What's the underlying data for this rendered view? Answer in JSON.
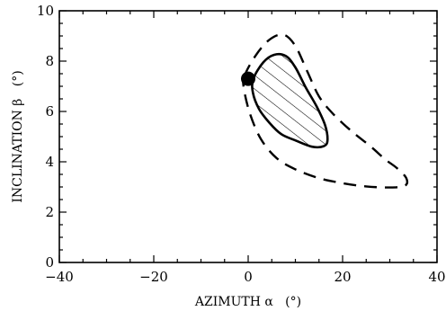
{
  "chart_data": {
    "type": "contour",
    "xlabel": "AZIMUTH α   (°)",
    "ylabel": "INCLINATION β   (°)",
    "xlim": [
      -40,
      40
    ],
    "ylim": [
      0,
      10
    ],
    "x_ticks": [
      -40,
      -20,
      0,
      20,
      40
    ],
    "y_ticks": [
      0,
      2,
      4,
      6,
      8,
      10
    ],
    "x_tick_labels": [
      "−40",
      "−20",
      "0",
      "20",
      "40"
    ],
    "y_tick_labels": [
      "0",
      "2",
      "4",
      "6",
      "8",
      "10"
    ],
    "grid": false,
    "series": [
      {
        "style": "dashed",
        "closed": true,
        "points": [
          [
            -0.8,
            7.4
          ],
          [
            1.5,
            8.2
          ],
          [
            4.5,
            8.85
          ],
          [
            7.5,
            9.05
          ],
          [
            10,
            8.6
          ],
          [
            12.5,
            7.6
          ],
          [
            15,
            6.6
          ],
          [
            18,
            5.9
          ],
          [
            22,
            5.2
          ],
          [
            26,
            4.6
          ],
          [
            29,
            4.1
          ],
          [
            31.5,
            3.75
          ],
          [
            33.5,
            3.35
          ],
          [
            33.2,
            3.05
          ],
          [
            30,
            2.98
          ],
          [
            25,
            3.02
          ],
          [
            20,
            3.15
          ],
          [
            15,
            3.35
          ],
          [
            10,
            3.7
          ],
          [
            6,
            4.15
          ],
          [
            2.7,
            4.9
          ],
          [
            0.4,
            5.9
          ],
          [
            -0.9,
            6.9
          ]
        ]
      },
      {
        "style": "solid",
        "fill": "hatched",
        "closed": true,
        "points": [
          [
            1.1,
            7.3
          ],
          [
            3.2,
            7.95
          ],
          [
            5.5,
            8.25
          ],
          [
            8,
            8.2
          ],
          [
            10,
            7.75
          ],
          [
            12.2,
            6.95
          ],
          [
            14.5,
            6.2
          ],
          [
            16.3,
            5.45
          ],
          [
            16.8,
            4.85
          ],
          [
            16,
            4.62
          ],
          [
            13.5,
            4.6
          ],
          [
            10,
            4.85
          ],
          [
            7,
            5.1
          ],
          [
            4.5,
            5.55
          ],
          [
            2.3,
            6.1
          ],
          [
            1.0,
            6.75
          ]
        ]
      }
    ],
    "markers": [
      {
        "x": 0,
        "y": 7.3,
        "shape": "filled-circle"
      }
    ]
  }
}
